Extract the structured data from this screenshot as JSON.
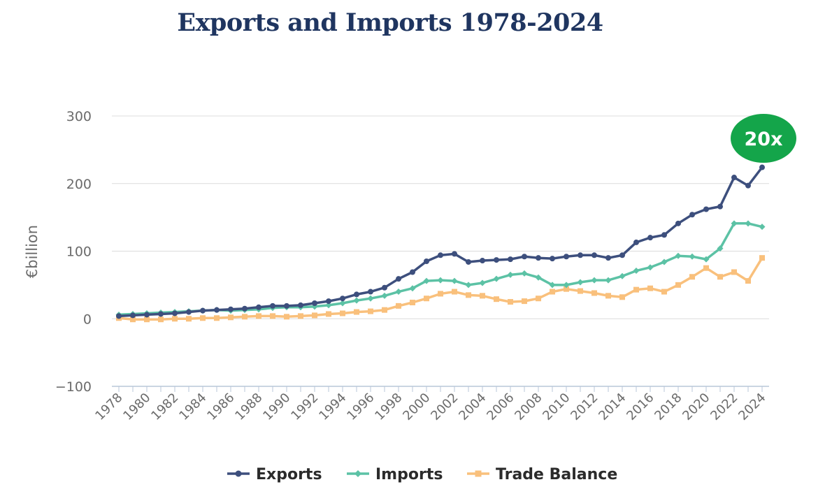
{
  "chart_data": {
    "type": "line",
    "title": "Exports and Imports 1978-2024",
    "xlabel": "",
    "ylabel": "€billion",
    "ylim": [
      -100,
      300
    ],
    "yticks": [
      "300",
      "200",
      "100",
      "0",
      "−100"
    ],
    "ytick_values": [
      300,
      200,
      100,
      0,
      -100
    ],
    "xticks": [
      "1978",
      "1980",
      "1982",
      "1984",
      "1986",
      "1988",
      "1990",
      "1992",
      "1994",
      "1996",
      "1998",
      "2000",
      "2002",
      "2004",
      "2006",
      "2008",
      "2010",
      "2012",
      "2014",
      "2016",
      "2018",
      "2020",
      "2022",
      "2024"
    ],
    "x": [
      1978,
      1979,
      1980,
      1981,
      1982,
      1983,
      1984,
      1985,
      1986,
      1987,
      1988,
      1989,
      1990,
      1991,
      1992,
      1993,
      1994,
      1995,
      1996,
      1997,
      1998,
      1999,
      2000,
      2001,
      2002,
      2003,
      2004,
      2005,
      2006,
      2007,
      2008,
      2009,
      2010,
      2011,
      2012,
      2013,
      2014,
      2015,
      2016,
      2017,
      2018,
      2019,
      2020,
      2021,
      2022,
      2023,
      2024
    ],
    "series": [
      {
        "name": "Exports",
        "color": "#3d4f7d",
        "marker": "circle",
        "values": [
          4,
          5,
          6,
          7,
          8,
          10,
          12,
          13,
          14,
          15,
          17,
          19,
          19,
          20,
          23,
          26,
          30,
          36,
          40,
          46,
          59,
          69,
          85,
          94,
          96,
          84,
          86,
          87,
          88,
          92,
          90,
          89,
          92,
          94,
          94,
          90,
          94,
          113,
          120,
          124,
          141,
          154,
          162,
          166,
          209,
          197,
          224
        ]
      },
      {
        "name": "Imports",
        "color": "#5cc2a5",
        "marker": "diamond",
        "values": [
          6,
          7,
          8,
          9,
          10,
          11,
          12,
          13,
          12,
          13,
          14,
          16,
          17,
          17,
          18,
          20,
          23,
          27,
          30,
          34,
          40,
          45,
          56,
          57,
          56,
          50,
          53,
          59,
          65,
          67,
          61,
          50,
          50,
          54,
          57,
          57,
          63,
          71,
          76,
          84,
          93,
          92,
          88,
          104,
          141,
          141,
          136
        ]
      },
      {
        "name": "Trade Balance",
        "color": "#f9c07c",
        "marker": "square",
        "values": [
          1,
          -1,
          -1,
          -1,
          0,
          0,
          1,
          1,
          2,
          3,
          4,
          4,
          3,
          4,
          5,
          7,
          8,
          10,
          11,
          13,
          19,
          24,
          30,
          37,
          40,
          35,
          34,
          29,
          25,
          26,
          30,
          40,
          44,
          41,
          38,
          34,
          32,
          43,
          45,
          40,
          50,
          62,
          75,
          62,
          69,
          56,
          90
        ]
      }
    ],
    "annotation": {
      "text": "20x",
      "color": "#14a54a",
      "anchor": "end-of-exports"
    },
    "legend": {
      "position": "bottom-center",
      "items": [
        "Exports",
        "Imports",
        "Trade Balance"
      ]
    },
    "grid": true
  }
}
